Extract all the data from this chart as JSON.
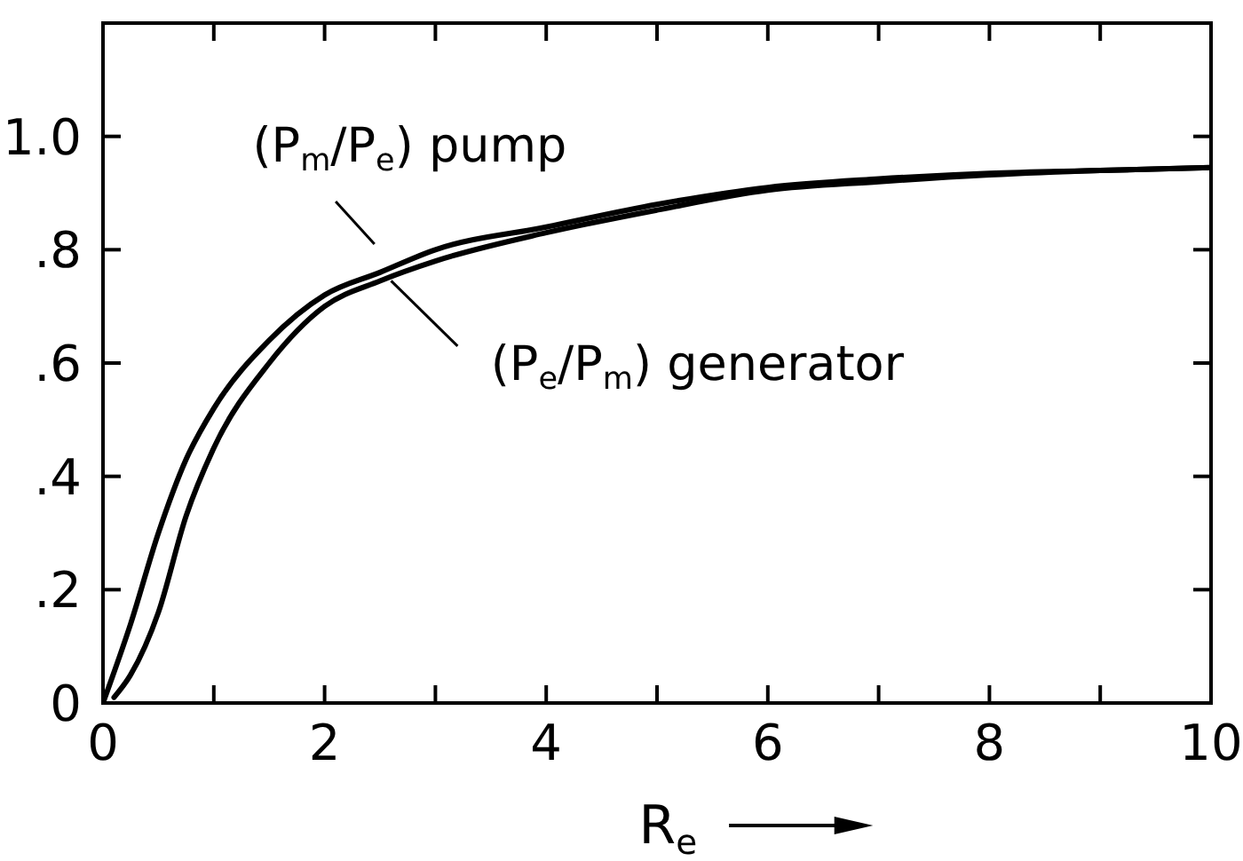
{
  "chart_data": {
    "type": "line",
    "xlabel": "R$_{e}$",
    "x": [
      0,
      0.25,
      0.5,
      0.75,
      1,
      1.5,
      2,
      2.5,
      3,
      4,
      5,
      6,
      7,
      8,
      9,
      10
    ],
    "series": [
      {
        "name": "(P$_{m}$/P$_{e}$) pump",
        "color": "#000000",
        "values": [
          0,
          0.14,
          0.3,
          0.43,
          0.52,
          0.64,
          0.72,
          0.76,
          0.8,
          0.84,
          0.88,
          0.91,
          0.925,
          0.935,
          0.94,
          0.945
        ]
      },
      {
        "name": "(P$_{e}$/P$_{m}$) generator",
        "color": "#000000",
        "x": [
          0.1,
          0.25,
          0.5,
          0.75,
          1,
          1.5,
          2,
          2.5,
          3,
          4,
          5,
          6,
          7,
          8,
          9,
          10
        ],
        "values": [
          0.01,
          0.05,
          0.16,
          0.33,
          0.45,
          0.6,
          0.7,
          0.745,
          0.78,
          0.83,
          0.87,
          0.905,
          0.92,
          0.932,
          0.94,
          0.945
        ]
      }
    ],
    "xlim": [
      0,
      10
    ],
    "xticks": [
      0,
      {
        "value": 1,
        "label": null
      },
      2,
      {
        "value": 3,
        "label": null
      },
      4,
      {
        "value": 5,
        "label": null
      },
      6,
      {
        "value": 7,
        "label": null
      },
      8,
      {
        "value": 9,
        "label": null
      },
      10
    ],
    "ylim": [
      0,
      1.2
    ],
    "yticks": [
      {
        "value": 0,
        "label": "0"
      },
      {
        "value": 0.2,
        "label": ".2"
      },
      {
        "value": 0.4,
        "label": ".4"
      },
      {
        "value": 0.6,
        "label": ".6"
      },
      {
        "value": 0.8,
        "label": ".8"
      },
      {
        "value": 1,
        "label": "1.0"
      }
    ],
    "grid": false,
    "legend": false,
    "marker": "none",
    "line_style": "solid"
  }
}
